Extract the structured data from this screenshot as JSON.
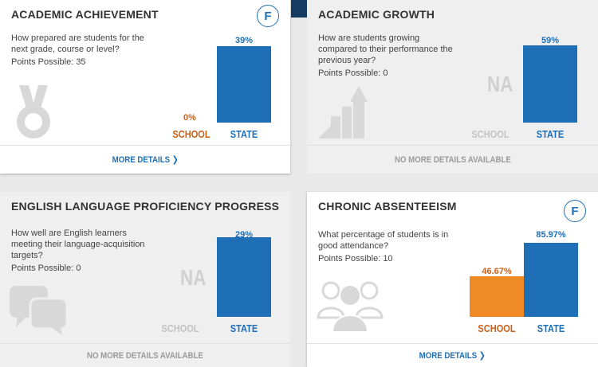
{
  "cards": [
    {
      "title": "ACADEMIC ACHIEVEMENT",
      "question": "How prepared are students for the next grade, course or level?",
      "points": "Points Possible: 35",
      "grade": "F",
      "school_value": 0,
      "school_label": "0%",
      "state_value": 39,
      "state_label": "39%",
      "axis_school": "SCHOOL",
      "axis_state": "STATE",
      "footer": "MORE DETAILS",
      "icon": "medal-icon"
    },
    {
      "title": "ACADEMIC GROWTH",
      "question": "How are students growing compared to their performance the previous year?",
      "points": "Points Possible: 0",
      "na_label": "NA",
      "state_value": 59,
      "state_label": "59%",
      "axis_school": "SCHOOL",
      "axis_state": "STATE",
      "footer": "NO MORE DETAILS AVAILABLE",
      "icon": "growth-arrow-icon"
    },
    {
      "title": "ENGLISH LANGUAGE PROFICIENCY PROGRESS",
      "question": "How well are English learners meeting their language-acquisition targets?",
      "points": "Points Possible: 0",
      "na_label": "NA",
      "state_value": 29,
      "state_label": "29%",
      "axis_school": "SCHOOL",
      "axis_state": "STATE",
      "footer": "NO MORE DETAILS AVAILABLE",
      "icon": "speech-bubbles-icon"
    },
    {
      "title": "CHRONIC ABSENTEEISM",
      "question": "What percentage of students is in good attendance?",
      "points": "Points Possible: 10",
      "grade": "F",
      "school_value": 46.67,
      "school_label": "46.67%",
      "state_value": 85.97,
      "state_label": "85.97%",
      "axis_school": "SCHOOL",
      "axis_state": "STATE",
      "footer": "MORE DETAILS",
      "icon": "people-group-icon"
    }
  ],
  "colors": {
    "state": "#1f6fb7",
    "school": "#f08a24",
    "muted": "#c4c4c4"
  }
}
